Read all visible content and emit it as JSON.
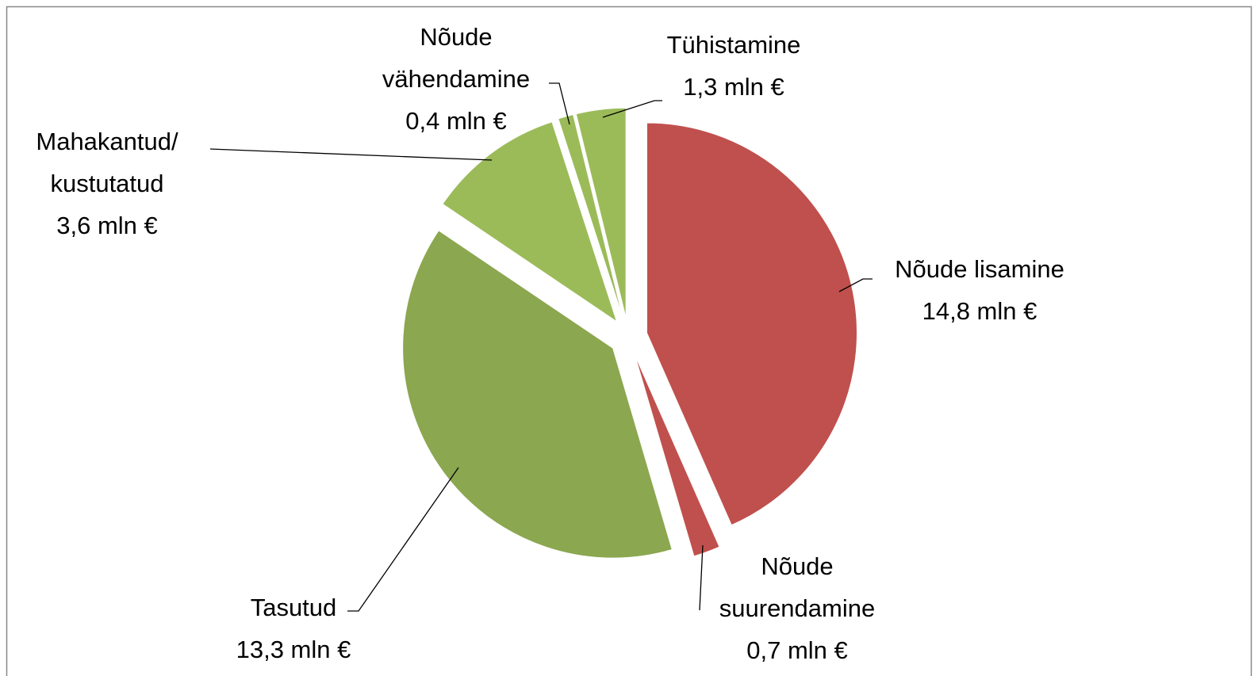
{
  "chart_data": {
    "type": "pie",
    "categories": [
      "Nõude lisamine",
      "Nõude suurendamine",
      "Tasutud",
      "Mahakantud/ kustutatud",
      "Nõude vähendamine",
      "Tühistamine"
    ],
    "values": [
      14.8,
      0.7,
      13.3,
      3.6,
      0.4,
      1.3
    ],
    "value_labels": [
      "14,8 mln €",
      "0,7 mln €",
      "13,3 mln €",
      "3,6 mln €",
      "0,4 mln €",
      "1,3 mln €"
    ],
    "colors": [
      "#c0504d",
      "#c0504d",
      "#8ba750",
      "#9bbb59",
      "#9bbb59",
      "#9bbb59"
    ]
  }
}
